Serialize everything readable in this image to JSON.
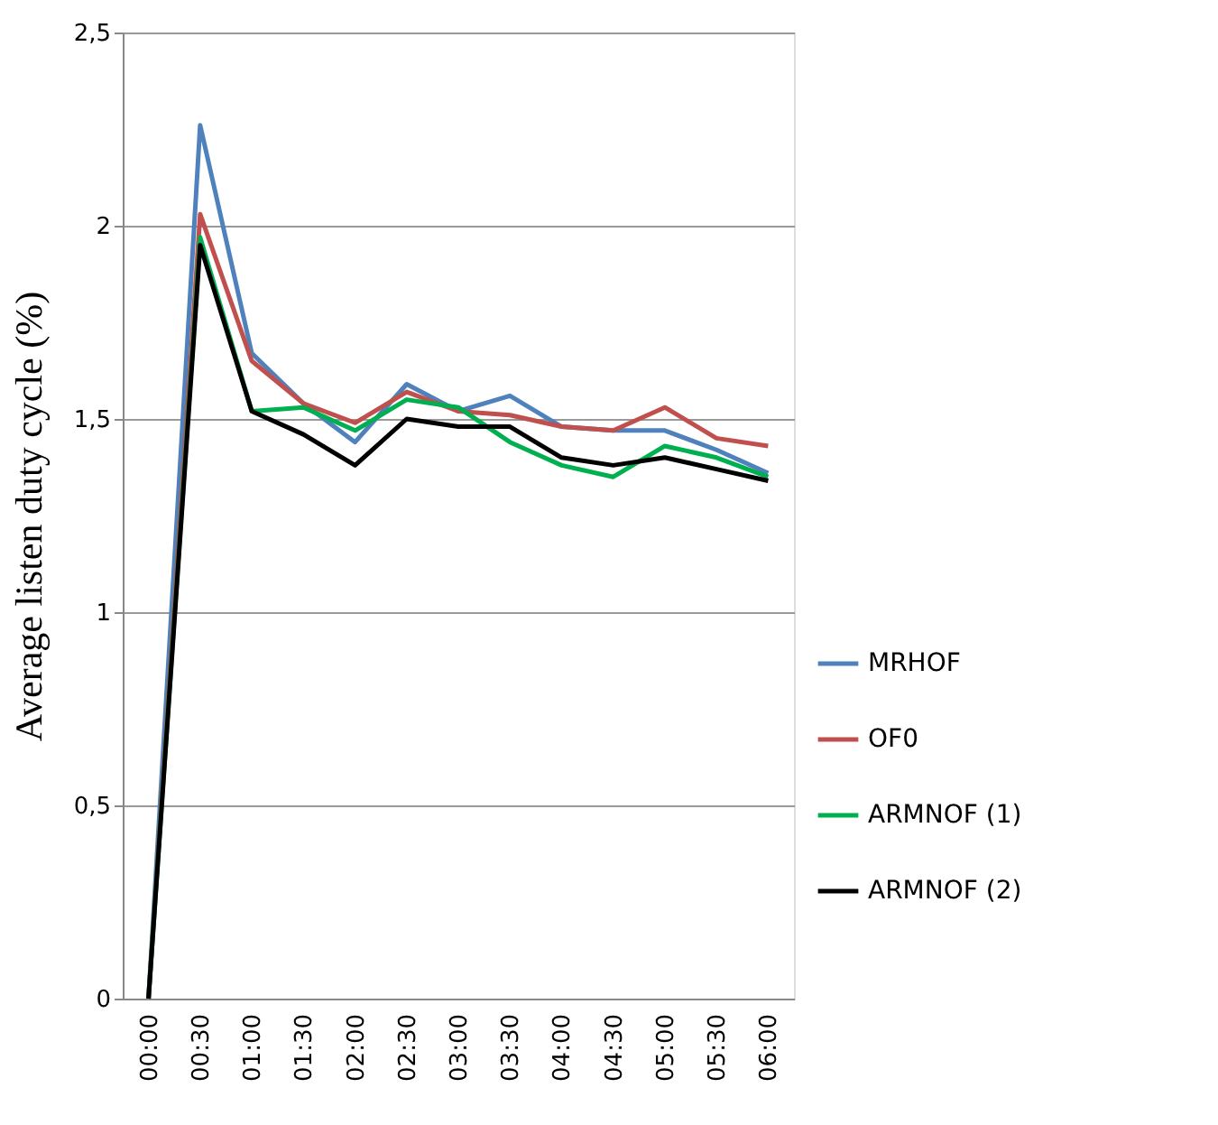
{
  "chart_data": {
    "type": "line",
    "ylabel": "Average listen duty cycle (%)",
    "categories": [
      "00:00",
      "00:30",
      "01:00",
      "01:30",
      "02:00",
      "02:30",
      "03:00",
      "03:30",
      "04:00",
      "04:30",
      "05:00",
      "05:30",
      "06:00"
    ],
    "series": [
      {
        "name": "MRHOF",
        "color": "#4f81bd",
        "values": [
          0,
          2.26,
          1.67,
          1.54,
          1.44,
          1.59,
          1.52,
          1.56,
          1.48,
          1.47,
          1.47,
          1.42,
          1.36
        ]
      },
      {
        "name": "OF0",
        "color": "#c0504d",
        "values": [
          0,
          2.03,
          1.65,
          1.54,
          1.49,
          1.57,
          1.52,
          1.51,
          1.48,
          1.47,
          1.53,
          1.45,
          1.43
        ]
      },
      {
        "name": "ARMNOF (1)",
        "color": "#00b050",
        "values": [
          0,
          1.97,
          1.52,
          1.53,
          1.47,
          1.55,
          1.53,
          1.44,
          1.38,
          1.35,
          1.43,
          1.4,
          1.35
        ]
      },
      {
        "name": "ARMNOF (2)",
        "color": "#000000",
        "values": [
          0,
          1.95,
          1.52,
          1.46,
          1.38,
          1.5,
          1.48,
          1.48,
          1.4,
          1.38,
          1.4,
          1.37,
          1.34
        ]
      }
    ],
    "ylim": [
      0,
      2.5
    ],
    "yticks": [
      0,
      {
        "value": 0.5,
        "label": "0,5"
      },
      1,
      {
        "value": 1.5,
        "label": "1,5"
      },
      2,
      {
        "value": 2.5,
        "label": "2,5"
      }
    ],
    "grid": "y",
    "legend": "right",
    "marker": "none",
    "line_style": "solid"
  }
}
